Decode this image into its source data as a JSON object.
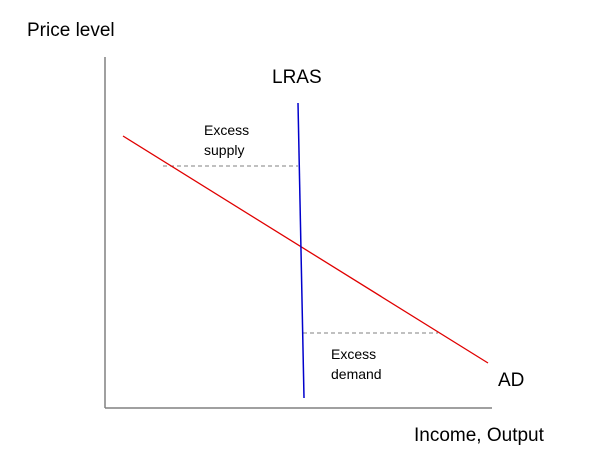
{
  "y_axis_label": "Price level",
  "x_axis_label": "Income, Output",
  "curves": {
    "lras_label": "LRAS",
    "ad_label": "AD"
  },
  "annotations": {
    "excess_supply": [
      "Excess",
      "supply"
    ],
    "excess_demand": [
      "Excess",
      "demand"
    ]
  },
  "colors": {
    "axes": "#808080",
    "lras": "#0000cc",
    "ad": "#e00000",
    "dashed": "#808080",
    "text": "#000000"
  }
}
